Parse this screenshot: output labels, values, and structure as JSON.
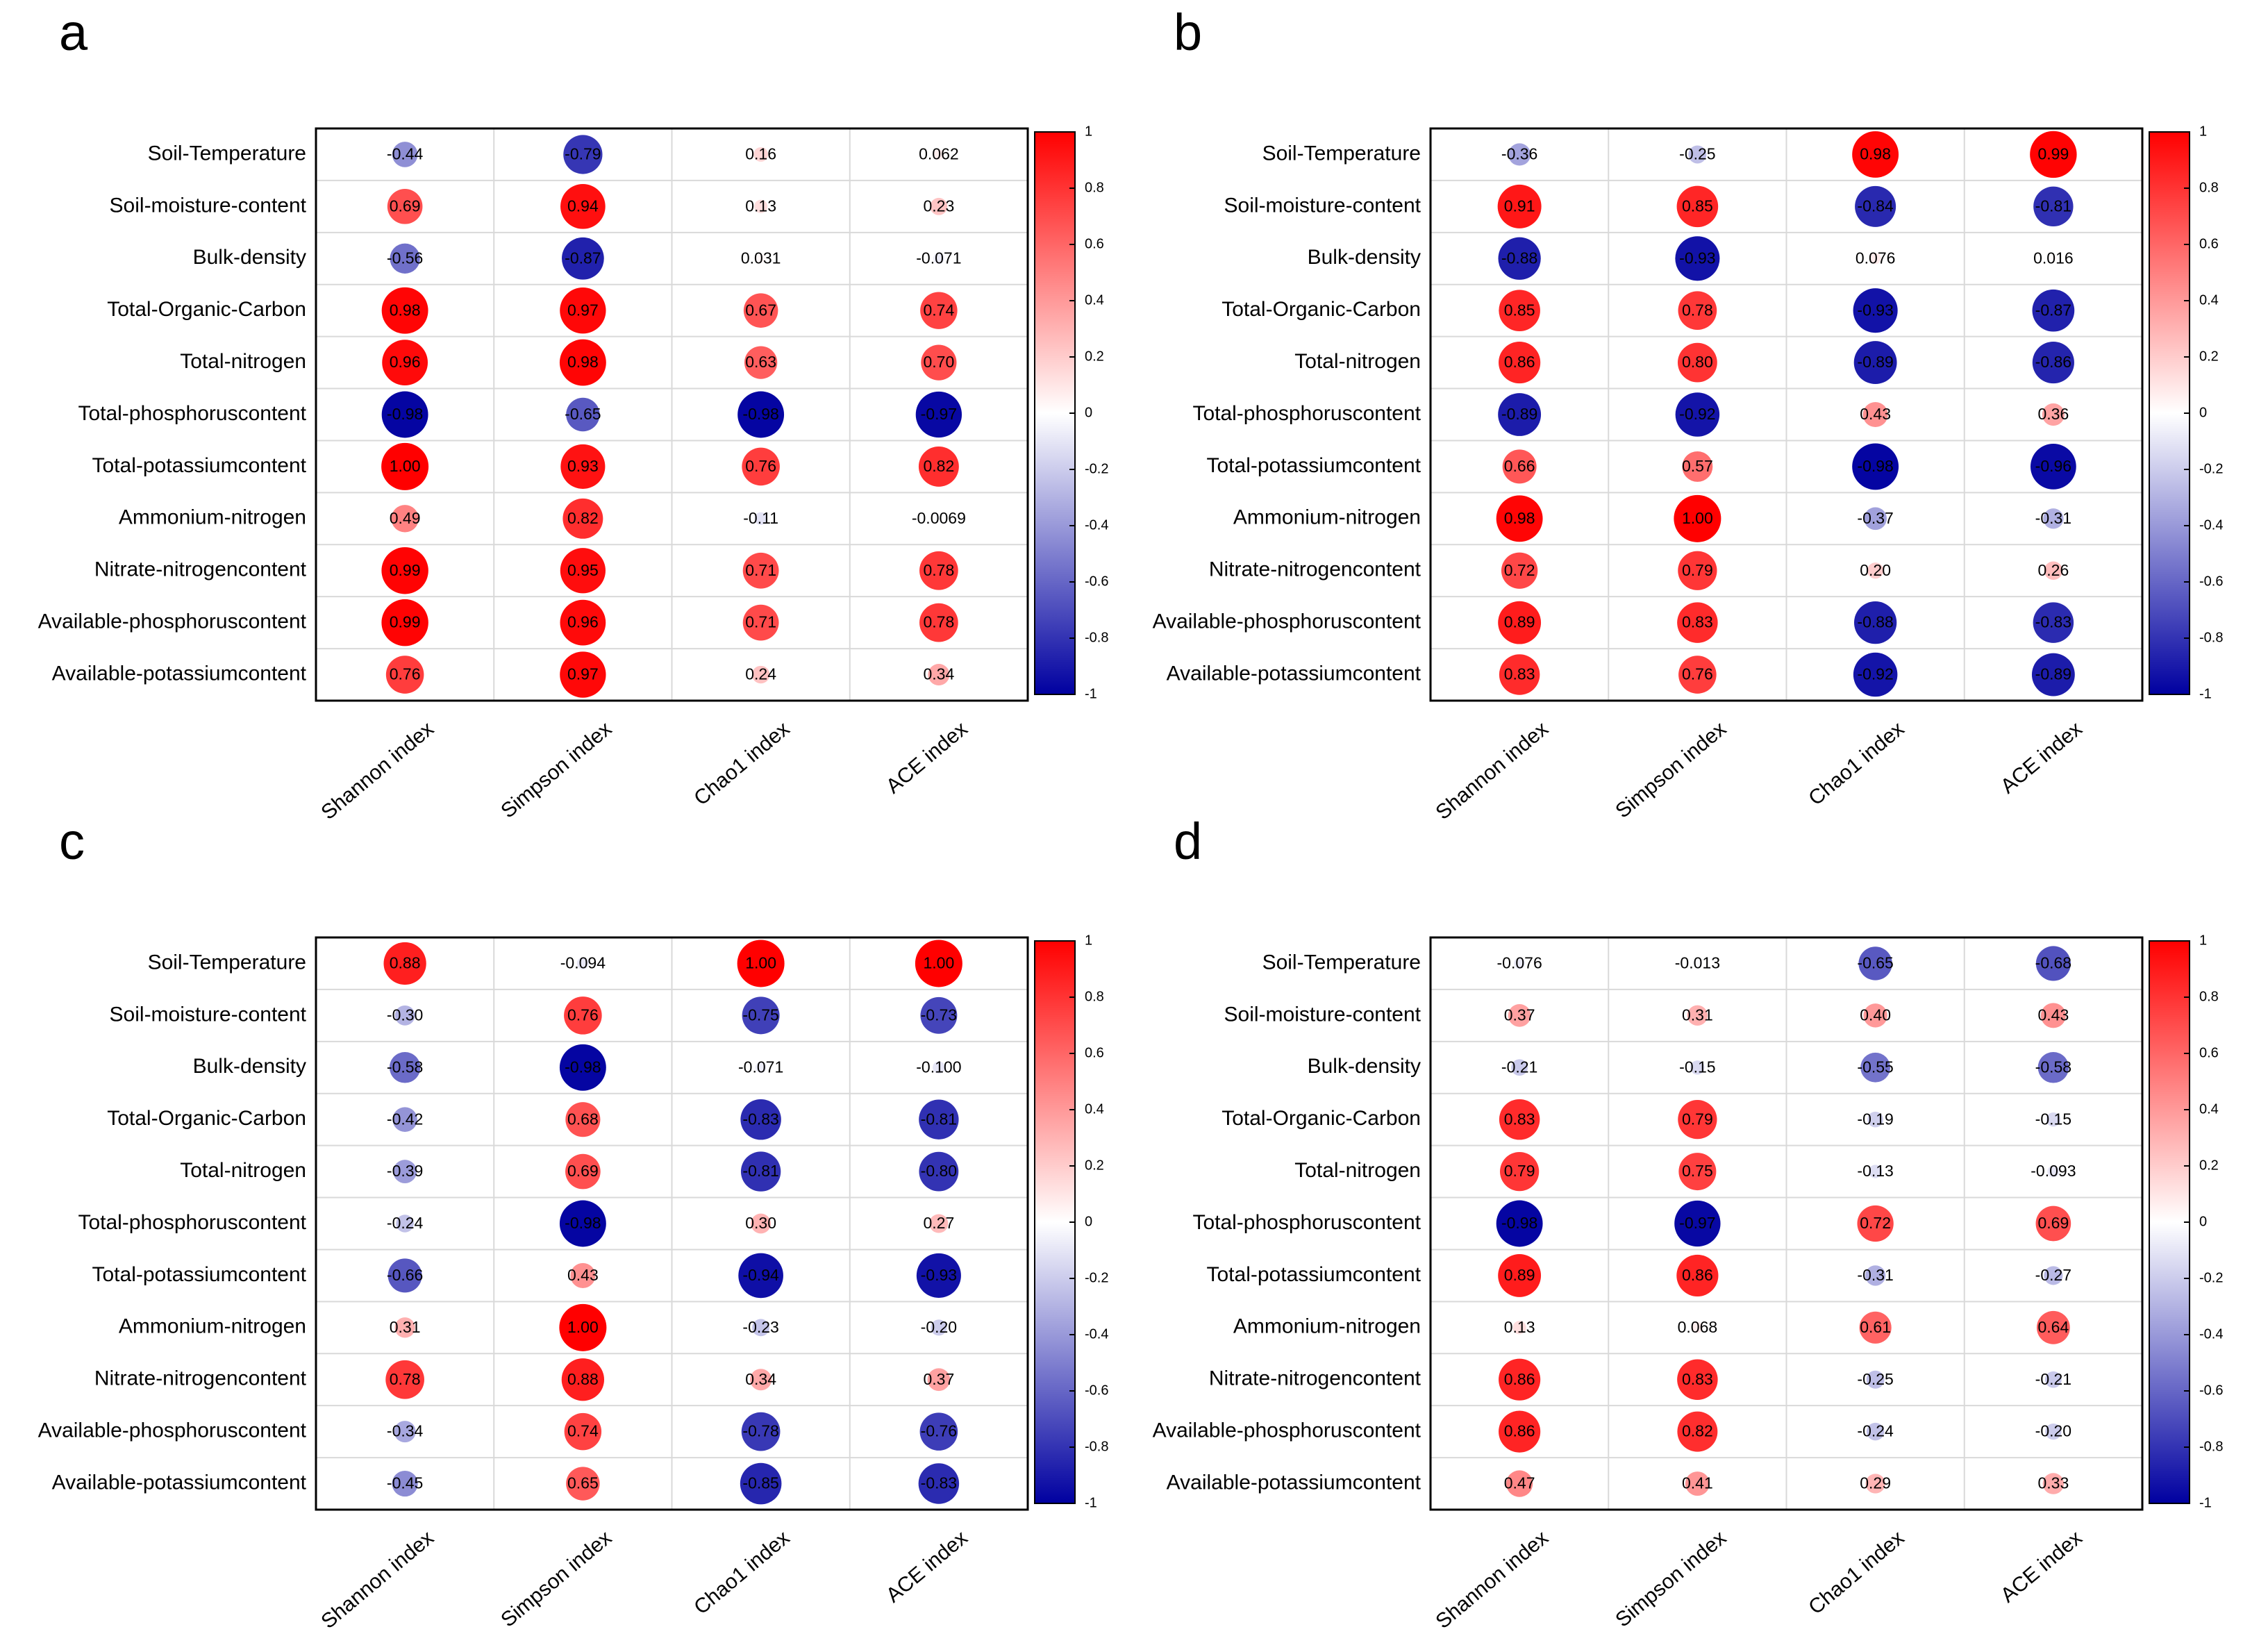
{
  "figure": {
    "rows": [
      "Soil-Temperature",
      "Soil-moisture-content",
      "Bulk-density",
      "Total-Organic-Carbon",
      "Total-nitrogen",
      "Total-phosphoruscontent",
      "Total-potassiumcontent",
      "Ammonium-nitrogen",
      "Nitrate-nitrogencontent",
      "Available-phosphoruscontent",
      "Available-potassiumcontent"
    ],
    "columns": [
      "Shannon index",
      "Simpson index",
      "Chao1 index",
      "ACE index"
    ],
    "colorbar_ticks": [
      "1",
      "0.8",
      "0.6",
      "0.4",
      "0.2",
      "0",
      "-0.2",
      "-0.4",
      "-0.6",
      "-0.8",
      "-1"
    ],
    "colors": {
      "positive": "#ff0000",
      "zero": "#ffffff",
      "negative": "#0000a0",
      "grid": "#d9d9d9",
      "border": "#000000"
    }
  },
  "chart_data": [
    {
      "panel": "a",
      "type": "heatmap",
      "values": [
        [
          "-0.44",
          "-0.79",
          "0.16",
          "0.062"
        ],
        [
          "0.69",
          "0.94",
          "0.13",
          "0.23"
        ],
        [
          "-0.56",
          "-0.87",
          "0.031",
          "-0.071"
        ],
        [
          "0.98",
          "0.97",
          "0.67",
          "0.74"
        ],
        [
          "0.96",
          "0.98",
          "0.63",
          "0.70"
        ],
        [
          "-0.98",
          "-0.65",
          "-0.98",
          "-0.97"
        ],
        [
          "1.00",
          "0.93",
          "0.76",
          "0.82"
        ],
        [
          "0.49",
          "0.82",
          "-0.11",
          "-0.0069"
        ],
        [
          "0.99",
          "0.95",
          "0.71",
          "0.78"
        ],
        [
          "0.99",
          "0.96",
          "0.71",
          "0.78"
        ],
        [
          "0.76",
          "0.97",
          "0.24",
          "0.34"
        ]
      ]
    },
    {
      "panel": "b",
      "type": "heatmap",
      "values": [
        [
          "-0.36",
          "-0.25",
          "0.98",
          "0.99"
        ],
        [
          "0.91",
          "0.85",
          "-0.84",
          "-0.81"
        ],
        [
          "-0.88",
          "-0.93",
          "0.076",
          "0.016"
        ],
        [
          "0.85",
          "0.78",
          "-0.93",
          "-0.87"
        ],
        [
          "0.86",
          "0.80",
          "-0.89",
          "-0.86"
        ],
        [
          "-0.89",
          "-0.92",
          "0.43",
          "0.36"
        ],
        [
          "0.66",
          "0.57",
          "-0.98",
          "-0.96"
        ],
        [
          "0.98",
          "1.00",
          "-0.37",
          "-0.31"
        ],
        [
          "0.72",
          "0.79",
          "0.20",
          "0.26"
        ],
        [
          "0.89",
          "0.83",
          "-0.88",
          "-0.83"
        ],
        [
          "0.83",
          "0.76",
          "-0.92",
          "-0.89"
        ]
      ]
    },
    {
      "panel": "c",
      "type": "heatmap",
      "values": [
        [
          "0.88",
          "-0.094",
          "1.00",
          "1.00"
        ],
        [
          "-0.30",
          "0.76",
          "-0.75",
          "-0.73"
        ],
        [
          "-0.58",
          "-0.98",
          "-0.071",
          "-0.100"
        ],
        [
          "-0.42",
          "0.68",
          "-0.83",
          "-0.81"
        ],
        [
          "-0.39",
          "0.69",
          "-0.81",
          "-0.80"
        ],
        [
          "-0.24",
          "-0.98",
          "0.30",
          "0.27"
        ],
        [
          "-0.66",
          "0.43",
          "-0.94",
          "-0.93"
        ],
        [
          "0.31",
          "1.00",
          "-0.23",
          "-0.20"
        ],
        [
          "0.78",
          "0.88",
          "0.34",
          "0.37"
        ],
        [
          "-0.34",
          "0.74",
          "-0.78",
          "-0.76"
        ],
        [
          "-0.45",
          "0.65",
          "-0.85",
          "-0.83"
        ]
      ]
    },
    {
      "panel": "d",
      "type": "heatmap",
      "values": [
        [
          "-0.076",
          "-0.013",
          "-0.65",
          "-0.68"
        ],
        [
          "0.37",
          "0.31",
          "0.40",
          "0.43"
        ],
        [
          "-0.21",
          "-0.15",
          "-0.55",
          "-0.58"
        ],
        [
          "0.83",
          "0.79",
          "-0.19",
          "-0.15"
        ],
        [
          "0.79",
          "0.75",
          "-0.13",
          "-0.093"
        ],
        [
          "-0.98",
          "-0.97",
          "0.72",
          "0.69"
        ],
        [
          "0.89",
          "0.86",
          "-0.31",
          "-0.27"
        ],
        [
          "0.13",
          "0.068",
          "0.61",
          "0.64"
        ],
        [
          "0.86",
          "0.83",
          "-0.25",
          "-0.21"
        ],
        [
          "0.86",
          "0.82",
          "-0.24",
          "-0.20"
        ],
        [
          "0.47",
          "0.41",
          "0.29",
          "0.33"
        ]
      ]
    }
  ]
}
